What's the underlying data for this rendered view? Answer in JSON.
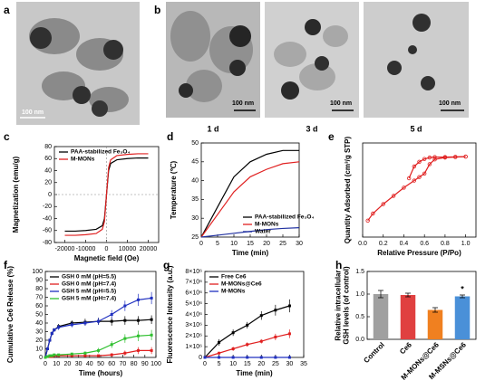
{
  "images": {
    "a": {
      "label": "a",
      "scale_bar": "100 nm"
    },
    "b": {
      "label": "b",
      "frames": [
        {
          "caption": "1 d",
          "scale_bar": "100 nm"
        },
        {
          "caption": "3 d",
          "scale_bar": "100 nm"
        },
        {
          "caption": "5 d",
          "scale_bar": "100 nm"
        }
      ]
    }
  },
  "chart_data": [
    {
      "type": "line",
      "panel_label": "c",
      "xlabel": "Magnetic field (Oe)",
      "ylabel": [
        "Magnetization (emu/g)"
      ],
      "x": [
        -20000,
        -15000,
        -10000,
        -5000,
        -2000,
        -1000,
        0,
        1000,
        2000,
        5000,
        10000,
        15000,
        20000
      ],
      "xlim": [
        -25000,
        25000
      ],
      "xticks": [
        -20000,
        -10000,
        0,
        10000,
        20000
      ],
      "ylim": [
        -80,
        80
      ],
      "yticks": [
        -80,
        -60,
        -40,
        -20,
        0,
        20,
        40,
        60,
        80
      ],
      "zero_lines": true,
      "legend": "upper left",
      "series": [
        {
          "name": "PAA-stabilized Fe₃O₄",
          "color": "#000000",
          "values": [
            -61,
            -61,
            -60,
            -58,
            -52,
            -40,
            0,
            40,
            52,
            58,
            60,
            61,
            61
          ]
        },
        {
          "name": "M-MONs",
          "color": "#e02020",
          "values": [
            -68,
            -68,
            -67,
            -65,
            -58,
            -45,
            0,
            45,
            58,
            65,
            67,
            68,
            68
          ]
        }
      ]
    },
    {
      "type": "line",
      "panel_label": "d",
      "xlabel": "Time (min)",
      "ylabel": [
        "Temperature (℃)"
      ],
      "x": [
        0,
        5,
        10,
        15,
        20,
        25,
        30
      ],
      "xlim": [
        0,
        30
      ],
      "xticks": [
        0,
        5,
        10,
        15,
        20,
        25,
        30
      ],
      "ylim": [
        25,
        50
      ],
      "yticks": [
        25,
        30,
        35,
        40,
        45,
        50
      ],
      "legend": "lower right",
      "series": [
        {
          "name": "PAA-stabilized Fe₃O₄",
          "color": "#000000",
          "values": [
            25,
            33,
            41,
            45,
            47,
            48,
            48
          ]
        },
        {
          "name": "M-MONs",
          "color": "#e02020",
          "values": [
            25,
            31,
            37,
            41,
            43,
            44.5,
            45
          ]
        },
        {
          "name": "Water",
          "color": "#2030a0",
          "values": [
            25,
            25.5,
            26,
            26.5,
            27,
            27.3,
            27.5
          ]
        }
      ]
    },
    {
      "type": "line",
      "panel_label": "e",
      "xlabel": "Relative Pressure (P/Po)",
      "ylabel": [
        "Quantity Adsorbed (cm³/g STP)"
      ],
      "xlim": [
        0,
        1.1
      ],
      "xticks": [
        {
          "value": 0,
          "label": "0.0"
        },
        0.2,
        0.4,
        0.6,
        0.8,
        {
          "value": 1,
          "label": "1.0"
        }
      ],
      "ylim": [
        100,
        500
      ],
      "marker": "circle-open",
      "series": [
        {
          "color": "#e02020",
          "x": [
            0.05,
            0.1,
            0.2,
            0.3,
            0.4,
            0.5,
            0.55,
            0.6,
            0.65,
            0.7,
            0.8,
            0.9,
            1.0
          ],
          "values": [
            170,
            200,
            240,
            275,
            310,
            340,
            355,
            370,
            410,
            430,
            438,
            440,
            442
          ]
        },
        {
          "color": "#e02020",
          "x": [
            1.0,
            0.9,
            0.8,
            0.7,
            0.65,
            0.6,
            0.55,
            0.5,
            0.45
          ],
          "values": [
            442,
            441,
            440,
            440,
            438,
            432,
            420,
            400,
            350
          ]
        }
      ]
    },
    {
      "type": "line",
      "panel_label": "f",
      "xlabel": "Time (hours)",
      "ylabel": [
        "Cumulative Ce6 Release (%)"
      ],
      "x": [
        0,
        2,
        4,
        6,
        8,
        12,
        24,
        36,
        48,
        60,
        72,
        84,
        96
      ],
      "xlim": [
        0,
        100
      ],
      "xticks": [
        0,
        10,
        20,
        30,
        40,
        50,
        60,
        70,
        80,
        90,
        100
      ],
      "ylim": [
        0,
        100
      ],
      "yticks": [
        0,
        10,
        20,
        30,
        40,
        50,
        60,
        70,
        80,
        90,
        100
      ],
      "marker": "square",
      "legend": "upper left",
      "series": [
        {
          "name": "GSH 0 mM (pH=5.5)",
          "color": "#000000",
          "values": [
            0,
            10,
            20,
            28,
            32,
            36,
            40,
            41,
            42,
            42,
            43,
            43,
            44
          ],
          "errors": [
            0,
            1,
            2,
            2,
            2,
            3,
            3,
            4,
            4,
            5,
            5,
            5,
            5
          ]
        },
        {
          "name": "GSH 0 mM (pH=7.4)",
          "color": "#e02020",
          "values": [
            0,
            1,
            1,
            1,
            2,
            2,
            2,
            2,
            2,
            3,
            5,
            8,
            8
          ],
          "errors": [
            0,
            0,
            0,
            0,
            1,
            1,
            1,
            1,
            1,
            2,
            3,
            4,
            4
          ]
        },
        {
          "name": "GSH 5 mM (pH=5.5)",
          "color": "#2030c0",
          "values": [
            0,
            10,
            20,
            28,
            32,
            35,
            38,
            40,
            42,
            50,
            60,
            67,
            69
          ],
          "errors": [
            0,
            1,
            2,
            2,
            2,
            3,
            3,
            3,
            4,
            5,
            6,
            7,
            7
          ]
        },
        {
          "name": "GSH 5 mM (pH=7.4)",
          "color": "#30c030",
          "values": [
            0,
            1,
            2,
            2,
            3,
            3,
            4,
            5,
            8,
            15,
            22,
            25,
            26
          ],
          "errors": [
            0,
            0,
            1,
            1,
            1,
            1,
            1,
            2,
            3,
            4,
            5,
            6,
            6
          ]
        }
      ]
    },
    {
      "type": "line",
      "panel_label": "g",
      "xlabel": "Time (min)",
      "ylabel": [
        "Fluorescence Intensity (a.u.)"
      ],
      "x": [
        0,
        5,
        10,
        15,
        20,
        25,
        30
      ],
      "xlim": [
        0,
        35
      ],
      "xticks": [
        0,
        5,
        10,
        15,
        20,
        25,
        30,
        35
      ],
      "ylim": [
        0,
        8000000
      ],
      "yticks": [
        0,
        {
          "value": 1000000,
          "label": "1×10⁶"
        },
        {
          "value": 2000000,
          "label": "2×10⁶"
        },
        {
          "value": 3000000,
          "label": "3×10⁶"
        },
        {
          "value": 4000000,
          "label": "4×10⁶"
        },
        {
          "value": 5000000,
          "label": "5×10⁶"
        },
        {
          "value": 6000000,
          "label": "6×10⁶"
        },
        {
          "value": 7000000,
          "label": "7×10⁶"
        },
        {
          "value": 8000000,
          "label": "8×10⁶"
        }
      ],
      "marker": "square",
      "legend": "upper left",
      "series": [
        {
          "name": "Free Ce6",
          "color": "#000000",
          "values": [
            0,
            1400000,
            2300000,
            3000000,
            3900000,
            4400000,
            4800000
          ],
          "errors": [
            0,
            300000,
            300000,
            300000,
            400000,
            500000,
            600000
          ]
        },
        {
          "name": "M-MONs@Ce6",
          "color": "#e02020",
          "values": [
            0,
            400000,
            800000,
            1200000,
            1500000,
            1900000,
            2200000
          ],
          "errors": [
            0,
            100000,
            200000,
            200000,
            200000,
            300000,
            400000
          ]
        },
        {
          "name": "M-MONs",
          "color": "#2030c0",
          "values": [
            0,
            0,
            0,
            0,
            0,
            0,
            0
          ]
        }
      ]
    },
    {
      "type": "bar",
      "panel_label": "h",
      "ylabel": [
        "Relative intracellular",
        "GSH levels (of control)"
      ],
      "categories": [
        "Control",
        "Ce6",
        "M-MONs@Ce6",
        "M-MSNs@Ce6"
      ],
      "values": [
        1.0,
        0.98,
        0.65,
        0.95
      ],
      "errors": [
        0.08,
        0.04,
        0.05,
        0.03
      ],
      "colors": [
        "#a0a0a0",
        "#e04040",
        "#f08020",
        "#4a90d8"
      ],
      "ylim": [
        0,
        1.5
      ],
      "yticks": [
        {
          "value": 0,
          "label": "0.0"
        },
        0.5,
        {
          "value": 1,
          "label": "1.0"
        },
        1.5
      ],
      "annotation": "*"
    }
  ]
}
